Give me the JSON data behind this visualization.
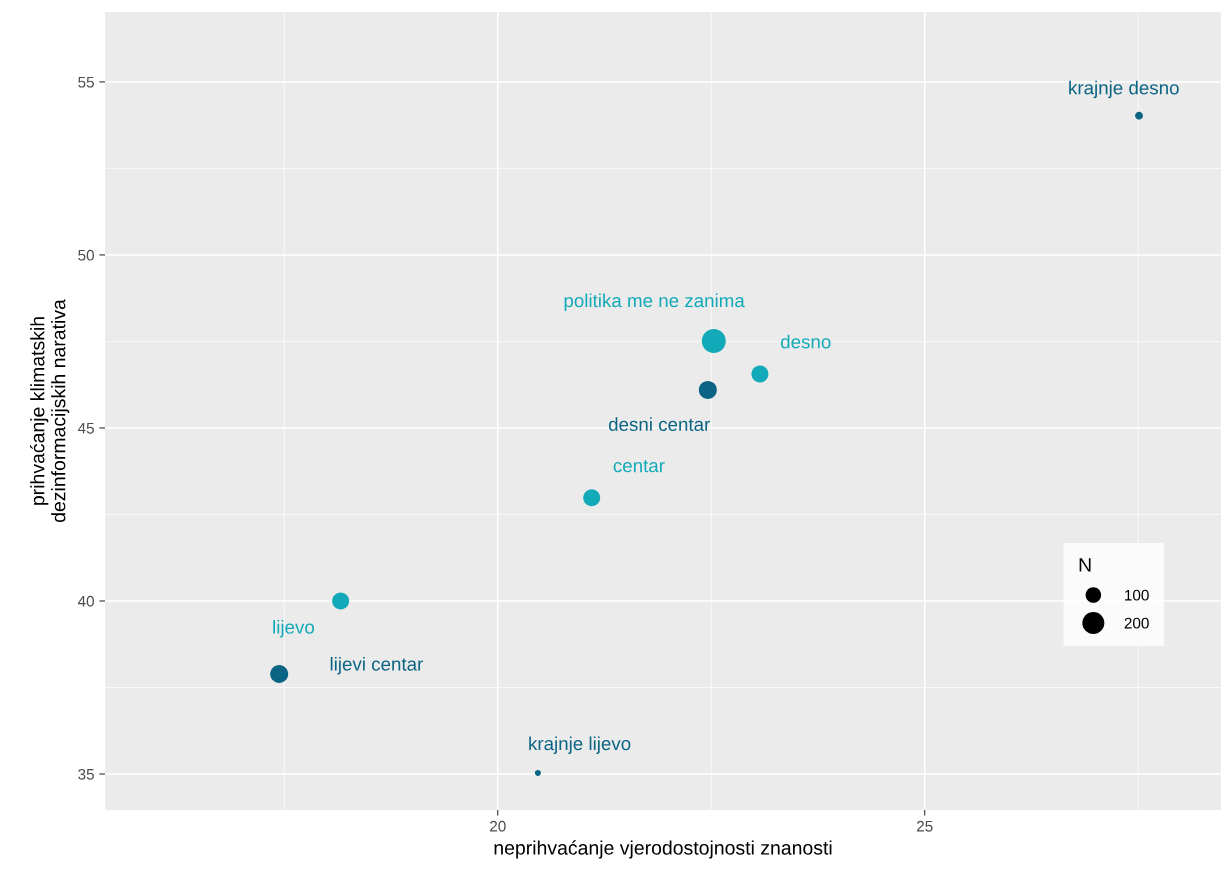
{
  "chart_data": {
    "type": "bubble",
    "xlabel": "neprihvaćanje vjerodostojnosti znanosti",
    "ylabel": "prihvaćanje klimatskih\ndezinformacijskih narativa",
    "legend_title": "N",
    "size_legend": [
      100,
      200
    ],
    "legend": "right",
    "grid": true,
    "xlim": [
      15.4,
      28.47
    ],
    "ylim": [
      33.96,
      57.02
    ],
    "xticks": [
      20,
      25
    ],
    "yticks": [
      35,
      40,
      45,
      50,
      55
    ],
    "series": [
      {
        "name": "krajnje desno",
        "color": "#0b6483",
        "x": [
          27.51
        ],
        "values": [
          54.02
        ],
        "sizes": [
          26
        ]
      },
      {
        "name": "politika me ne zanima",
        "color": "#12a9b8",
        "x": [
          22.53
        ],
        "values": [
          47.51
        ],
        "sizes": [
          238
        ]
      },
      {
        "name": "desno",
        "color": "#12a9b8",
        "x": [
          23.07
        ],
        "values": [
          46.56
        ],
        "sizes": [
          119
        ]
      },
      {
        "name": "desni centar",
        "color": "#0b6483",
        "x": [
          22.46
        ],
        "values": [
          46.1
        ],
        "sizes": [
          134
        ]
      },
      {
        "name": "centar",
        "color": "#12a9b8",
        "x": [
          21.1
        ],
        "values": [
          42.98
        ],
        "sizes": [
          119
        ]
      },
      {
        "name": "lijevo",
        "color": "#12a9b8",
        "x": [
          18.16
        ],
        "values": [
          40.0
        ],
        "sizes": [
          119
        ]
      },
      {
        "name": "lijevi centar",
        "color": "#0b6483",
        "x": [
          17.44
        ],
        "values": [
          37.89
        ],
        "sizes": [
          134
        ]
      },
      {
        "name": "krajnje lijevo",
        "color": "#0b6483",
        "x": [
          20.47
        ],
        "values": [
          35.03
        ],
        "sizes": [
          15
        ]
      }
    ]
  }
}
